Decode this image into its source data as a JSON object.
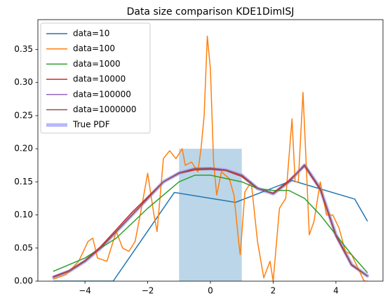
{
  "chart_data": {
    "type": "line",
    "title": "Data size comparison KDE1DimISJ",
    "xlim": [
      -5.5,
      5.5
    ],
    "ylim": [
      0,
      0.395
    ],
    "xticks": [
      {
        "value": -4,
        "label": "−4"
      },
      {
        "value": -2,
        "label": "−2"
      },
      0,
      2,
      4
    ],
    "yticks": [
      {
        "value": 0,
        "label": "0.00"
      },
      {
        "value": 0.05,
        "label": "0.05"
      },
      {
        "value": 0.1,
        "label": "0.10"
      },
      {
        "value": 0.15,
        "label": "0.15"
      },
      {
        "value": 0.2,
        "label": "0.20"
      },
      {
        "value": 0.25,
        "label": "0.25"
      },
      {
        "value": 0.3,
        "label": "0.30"
      },
      {
        "value": 0.35,
        "label": "0.35"
      }
    ],
    "legend": "upper left",
    "histogram": {
      "bins": [
        -1,
        1
      ],
      "counts": [
        0.2
      ],
      "color": "#1f77b4",
      "alpha": 0.3
    },
    "series": [
      {
        "name": "data=10",
        "color": "#1f77b4",
        "linewidth": 1.5,
        "x": [
          -5,
          -3.1,
          -1.15,
          0.8,
          2.6,
          4.6,
          5
        ],
        "values": [
          0,
          0,
          0.134,
          0.119,
          0.152,
          0.124,
          0.091
        ]
      },
      {
        "name": "data=100",
        "color": "#ff7f0e",
        "linewidth": 1.5,
        "x": [
          -5,
          -4.6,
          -4.2,
          -3.9,
          -3.75,
          -3.6,
          -3.3,
          -3.0,
          -2.8,
          -2.6,
          -2.4,
          -2.2,
          -2.0,
          -1.8,
          -1.7,
          -1.5,
          -1.3,
          -1.1,
          -0.9,
          -0.8,
          -0.6,
          -0.4,
          -0.3,
          -0.2,
          -0.1,
          0,
          0.1,
          0.2,
          0.35,
          0.6,
          0.75,
          0.9,
          0.95,
          1.1,
          1.3,
          1.5,
          1.7,
          1.9,
          2.0,
          2.2,
          2.4,
          2.6,
          2.7,
          2.8,
          2.95,
          3.05,
          3.15,
          3.3,
          3.5,
          3.7,
          3.9,
          4.1,
          4.3,
          4.5,
          4.7,
          4.9,
          5
        ],
        "values": [
          0.003,
          0.01,
          0.03,
          0.06,
          0.065,
          0.035,
          0.03,
          0.075,
          0.05,
          0.045,
          0.06,
          0.11,
          0.163,
          0.1,
          0.075,
          0.185,
          0.197,
          0.185,
          0.2,
          0.175,
          0.18,
          0.165,
          0.2,
          0.25,
          0.37,
          0.32,
          0.18,
          0.13,
          0.165,
          0.155,
          0.13,
          0.06,
          0.04,
          0.135,
          0.15,
          0.06,
          0.005,
          0.03,
          0,
          0.11,
          0.125,
          0.245,
          0.15,
          0.15,
          0.285,
          0.18,
          0.07,
          0.09,
          0.15,
          0.1,
          0.1,
          0.08,
          0.045,
          0.04,
          0.02,
          0,
          0
        ]
      },
      {
        "name": "data=1000",
        "color": "#2ca02c",
        "linewidth": 1.5,
        "x": [
          -5,
          -4,
          -3,
          -2,
          -1,
          -0.5,
          0,
          0.5,
          1,
          1.5,
          2,
          2.5,
          3,
          3.5,
          4,
          4.5,
          5
        ],
        "values": [
          0.015,
          0.035,
          0.065,
          0.11,
          0.15,
          0.16,
          0.16,
          0.155,
          0.15,
          0.14,
          0.137,
          0.137,
          0.125,
          0.1,
          0.07,
          0.04,
          0.013
        ]
      },
      {
        "name": "data=10000",
        "color": "#d62728",
        "linewidth": 1.5,
        "x": [
          -5,
          -4.5,
          -4,
          -3.5,
          -3,
          -2.5,
          -2,
          -1.5,
          -1,
          -0.5,
          0,
          0.5,
          1,
          1.5,
          2,
          2.5,
          3,
          3.5,
          4,
          4.5,
          5
        ],
        "values": [
          0.007,
          0.016,
          0.031,
          0.052,
          0.078,
          0.104,
          0.127,
          0.15,
          0.163,
          0.168,
          0.169,
          0.167,
          0.158,
          0.14,
          0.133,
          0.152,
          0.174,
          0.138,
          0.068,
          0.024,
          0.008
        ]
      },
      {
        "name": "data=100000",
        "color": "#9467bd",
        "linewidth": 1.5,
        "x": [
          -5,
          -4.5,
          -4,
          -3.5,
          -3,
          -2.5,
          -2,
          -1.5,
          -1,
          -0.5,
          0,
          0.5,
          1,
          1.5,
          2,
          2.5,
          3,
          3.5,
          4,
          4.5,
          5
        ],
        "values": [
          0.006,
          0.015,
          0.03,
          0.05,
          0.075,
          0.1,
          0.125,
          0.15,
          0.164,
          0.17,
          0.171,
          0.168,
          0.16,
          0.141,
          0.132,
          0.15,
          0.176,
          0.14,
          0.07,
          0.025,
          0.008
        ]
      },
      {
        "name": "data=1000000",
        "color": "#8c564b",
        "linewidth": 1.5,
        "x": [
          -5,
          -4.5,
          -4,
          -3.5,
          -3,
          -2.5,
          -2,
          -1.5,
          -1,
          -0.5,
          0,
          0.5,
          1,
          1.5,
          2,
          2.5,
          3,
          3.5,
          4,
          4.5,
          5
        ],
        "values": [
          0.006,
          0.015,
          0.03,
          0.05,
          0.075,
          0.1,
          0.125,
          0.15,
          0.163,
          0.17,
          0.17,
          0.168,
          0.16,
          0.14,
          0.132,
          0.15,
          0.175,
          0.14,
          0.07,
          0.025,
          0.008
        ]
      },
      {
        "name": "True PDF",
        "color": "#aaaaff",
        "linewidth": 5,
        "x": [
          -5,
          -4.5,
          -4,
          -3.5,
          -3,
          -2.5,
          -2,
          -1.5,
          -1,
          -0.5,
          0,
          0.5,
          1,
          1.5,
          2,
          2.5,
          3,
          3.5,
          4,
          4.5,
          5
        ],
        "values": [
          0.006,
          0.015,
          0.03,
          0.05,
          0.075,
          0.1,
          0.125,
          0.15,
          0.163,
          0.17,
          0.17,
          0.168,
          0.16,
          0.14,
          0.132,
          0.15,
          0.175,
          0.14,
          0.07,
          0.025,
          0.008
        ]
      }
    ]
  }
}
